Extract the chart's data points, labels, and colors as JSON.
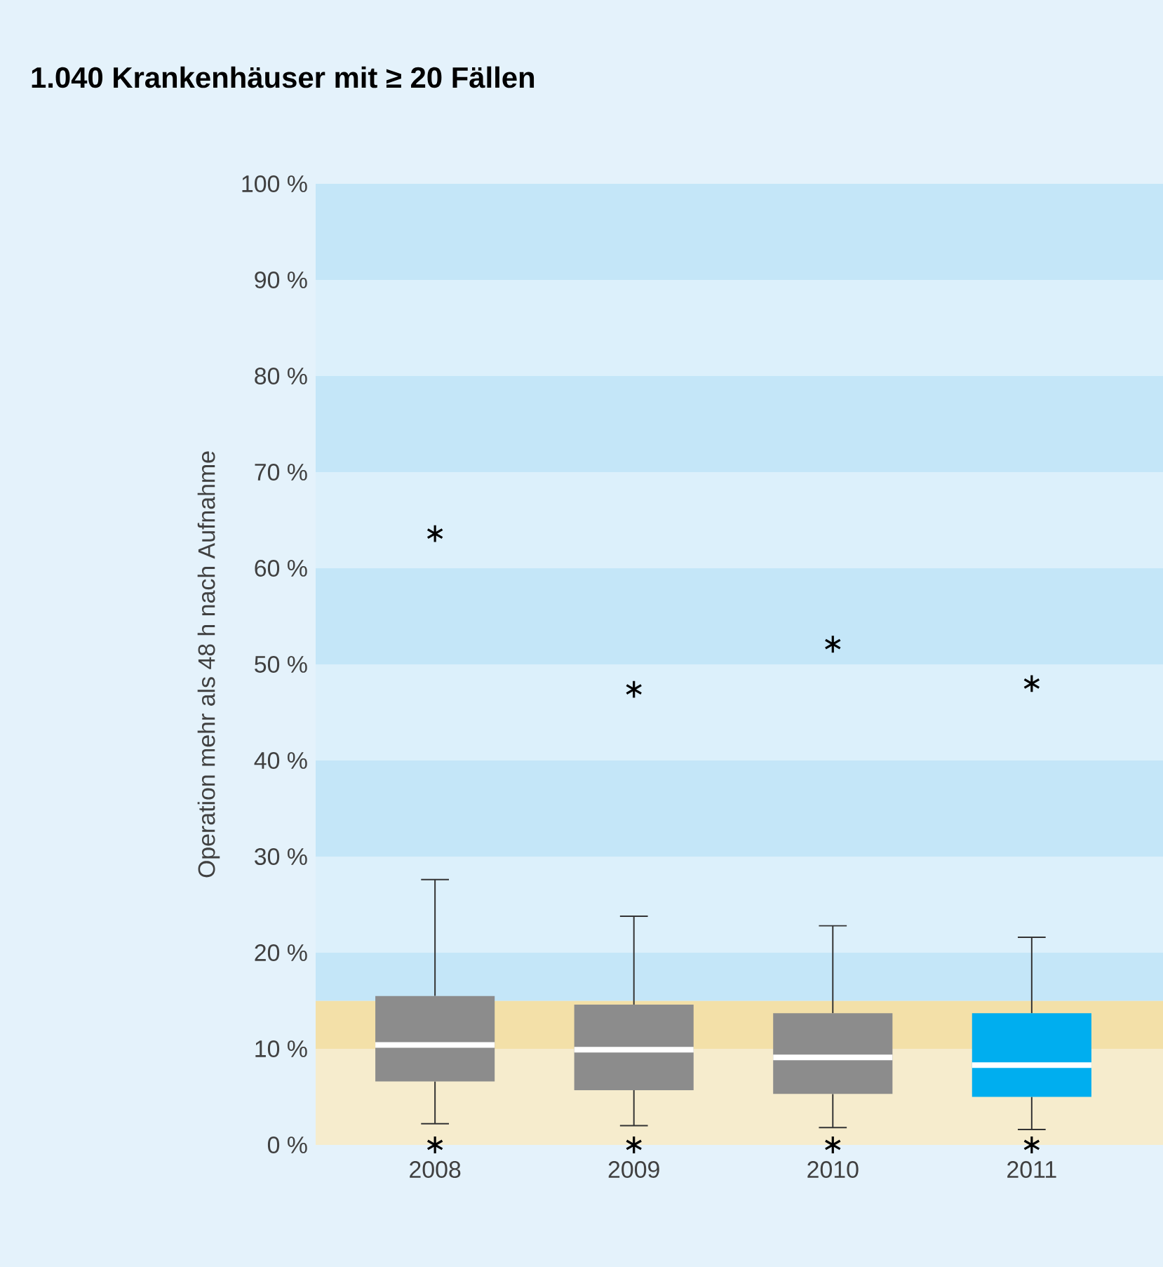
{
  "chart_data": {
    "type": "box",
    "title": "1.040 Krankenhäuser mit ≥ 20 Fällen",
    "ylabel": "Operation mehr als 48 h nach Aufnahme",
    "categories": [
      "2008",
      "2009",
      "2010",
      "2011"
    ],
    "colors": [
      "#8c8c8c",
      "#8c8c8c",
      "#8c8c8c",
      "#00aeef"
    ],
    "boxes": [
      {
        "low": 2.2,
        "q1": 6.6,
        "median": 10.4,
        "q3": 15.5,
        "high": 27.6,
        "outliers": [
          63.6,
          0
        ]
      },
      {
        "low": 2.0,
        "q1": 5.7,
        "median": 9.9,
        "q3": 14.6,
        "high": 23.8,
        "outliers": [
          47.4,
          0
        ]
      },
      {
        "low": 1.8,
        "q1": 5.3,
        "median": 9.1,
        "q3": 13.7,
        "high": 22.8,
        "outliers": [
          52.1,
          0
        ]
      },
      {
        "low": 1.6,
        "q1": 5.0,
        "median": 8.3,
        "q3": 13.7,
        "high": 21.6,
        "outliers": [
          48.0,
          0
        ]
      }
    ],
    "marker": "star",
    "ylim": [
      0,
      100
    ],
    "yticks": [
      {
        "value": 0,
        "label": "0 %"
      },
      {
        "value": 10,
        "label": "10 %"
      },
      {
        "value": 20,
        "label": "20 %"
      },
      {
        "value": 30,
        "label": "30 %"
      },
      {
        "value": 40,
        "label": "40 %"
      },
      {
        "value": 50,
        "label": "50 %"
      },
      {
        "value": 60,
        "label": "60 %"
      },
      {
        "value": 70,
        "label": "70 %"
      },
      {
        "value": 80,
        "label": "80 %"
      },
      {
        "value": 90,
        "label": "90 %"
      },
      {
        "value": 100,
        "label": "100 %"
      }
    ],
    "bands": [
      {
        "axis": "y",
        "from": 0,
        "to": 10,
        "color": "#f6eccd"
      },
      {
        "axis": "y",
        "from": 10,
        "to": 15,
        "color": "#f3e0a8"
      },
      {
        "axis": "y",
        "from": 15,
        "to": 20,
        "color": "#c4e6f8"
      },
      {
        "axis": "y",
        "from": 20,
        "to": 30,
        "color": "#dcf0fb"
      },
      {
        "axis": "y",
        "from": 30,
        "to": 40,
        "color": "#c4e6f8"
      },
      {
        "axis": "y",
        "from": 40,
        "to": 50,
        "color": "#dcf0fb"
      },
      {
        "axis": "y",
        "from": 50,
        "to": 60,
        "color": "#c4e6f8"
      },
      {
        "axis": "y",
        "from": 60,
        "to": 70,
        "color": "#dcf0fb"
      },
      {
        "axis": "y",
        "from": 70,
        "to": 80,
        "color": "#c4e6f8"
      },
      {
        "axis": "y",
        "from": 80,
        "to": 90,
        "color": "#dcf0fb"
      },
      {
        "axis": "y",
        "from": 90,
        "to": 100,
        "color": "#c4e6f8"
      }
    ],
    "grid": false
  }
}
